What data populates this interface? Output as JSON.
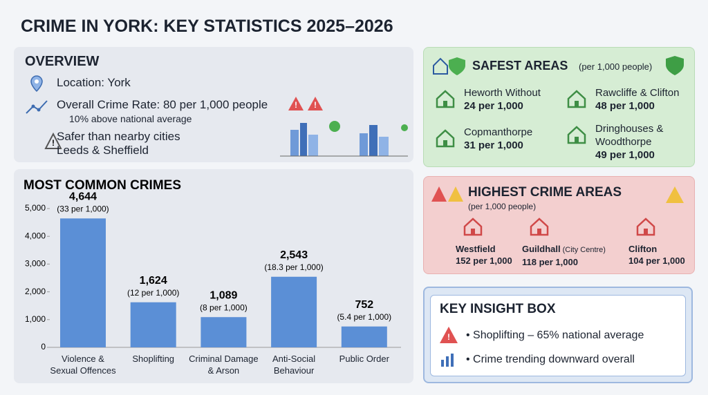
{
  "title": "CRIME IN YORK: KEY STATISTICS 2025–2026",
  "overview": {
    "heading": "OVERVIEW",
    "location": "Location: York",
    "crime_rate": "Overall Crime Rate: 80 per 1,000 people",
    "comparison": "10% above national average",
    "safer": "Safer than nearby cities",
    "safer_detail": "Leeds & Sheffield"
  },
  "chart_data": {
    "type": "bar",
    "title": "MOST COMMON CRIMES",
    "categories": [
      "Violence & Sexual Offences",
      "Shoplifting",
      "Criminal Damage & Arson",
      "Anti-Social Behaviour",
      "Public Order"
    ],
    "values": [
      4644,
      1624,
      1089,
      2543,
      752
    ],
    "value_labels": [
      "4,644",
      "1,624",
      "1,089",
      "2,543",
      "752"
    ],
    "rate_labels": [
      "(33 per 1,000)",
      "(12 per 1,000)",
      "(8 per 1,000)",
      "(18.3 per 1,000)",
      "(5.4 per 1,000)"
    ],
    "color": "#5b8fd6",
    "ylim": [
      0,
      5000
    ],
    "yticks": [
      0,
      {
        "value": 1000,
        "label": "1,000"
      },
      {
        "value": 2000,
        "label": "2,000"
      },
      {
        "value": 3000,
        "label": "3,000"
      },
      {
        "value": 4000,
        "label": "4,000"
      },
      {
        "value": 5000,
        "label": "5,000"
      }
    ],
    "grid": false
  },
  "safest": {
    "heading": "SAFEST AREAS",
    "unit": "(per 1,000 people)",
    "areas": [
      {
        "name": "Heworth Without",
        "rate": "24 per 1,000"
      },
      {
        "name": "Rawcliffe & Clifton",
        "rate": "48 per 1,000"
      },
      {
        "name": "Copmanthorpe",
        "rate": "31 per 1,000"
      },
      {
        "name": "Dringhouses & Woodthorpe",
        "rate": "49 per 1,000"
      }
    ]
  },
  "highest": {
    "heading": "HIGHEST CRIME AREAS",
    "unit": "(per 1,000 people)",
    "areas": [
      {
        "name": "Westfield",
        "rate": "152 per 1,000"
      },
      {
        "name": "Guildhall",
        "note": "(City Centre)",
        "rate": "118 per 1,000"
      },
      {
        "name": "Clifton",
        "rate": "104 per 1,000"
      }
    ]
  },
  "insight": {
    "heading": "KEY INSIGHT BOX",
    "items": [
      "Shoplifting – 65% national average",
      "Crime trending downward overall"
    ]
  }
}
